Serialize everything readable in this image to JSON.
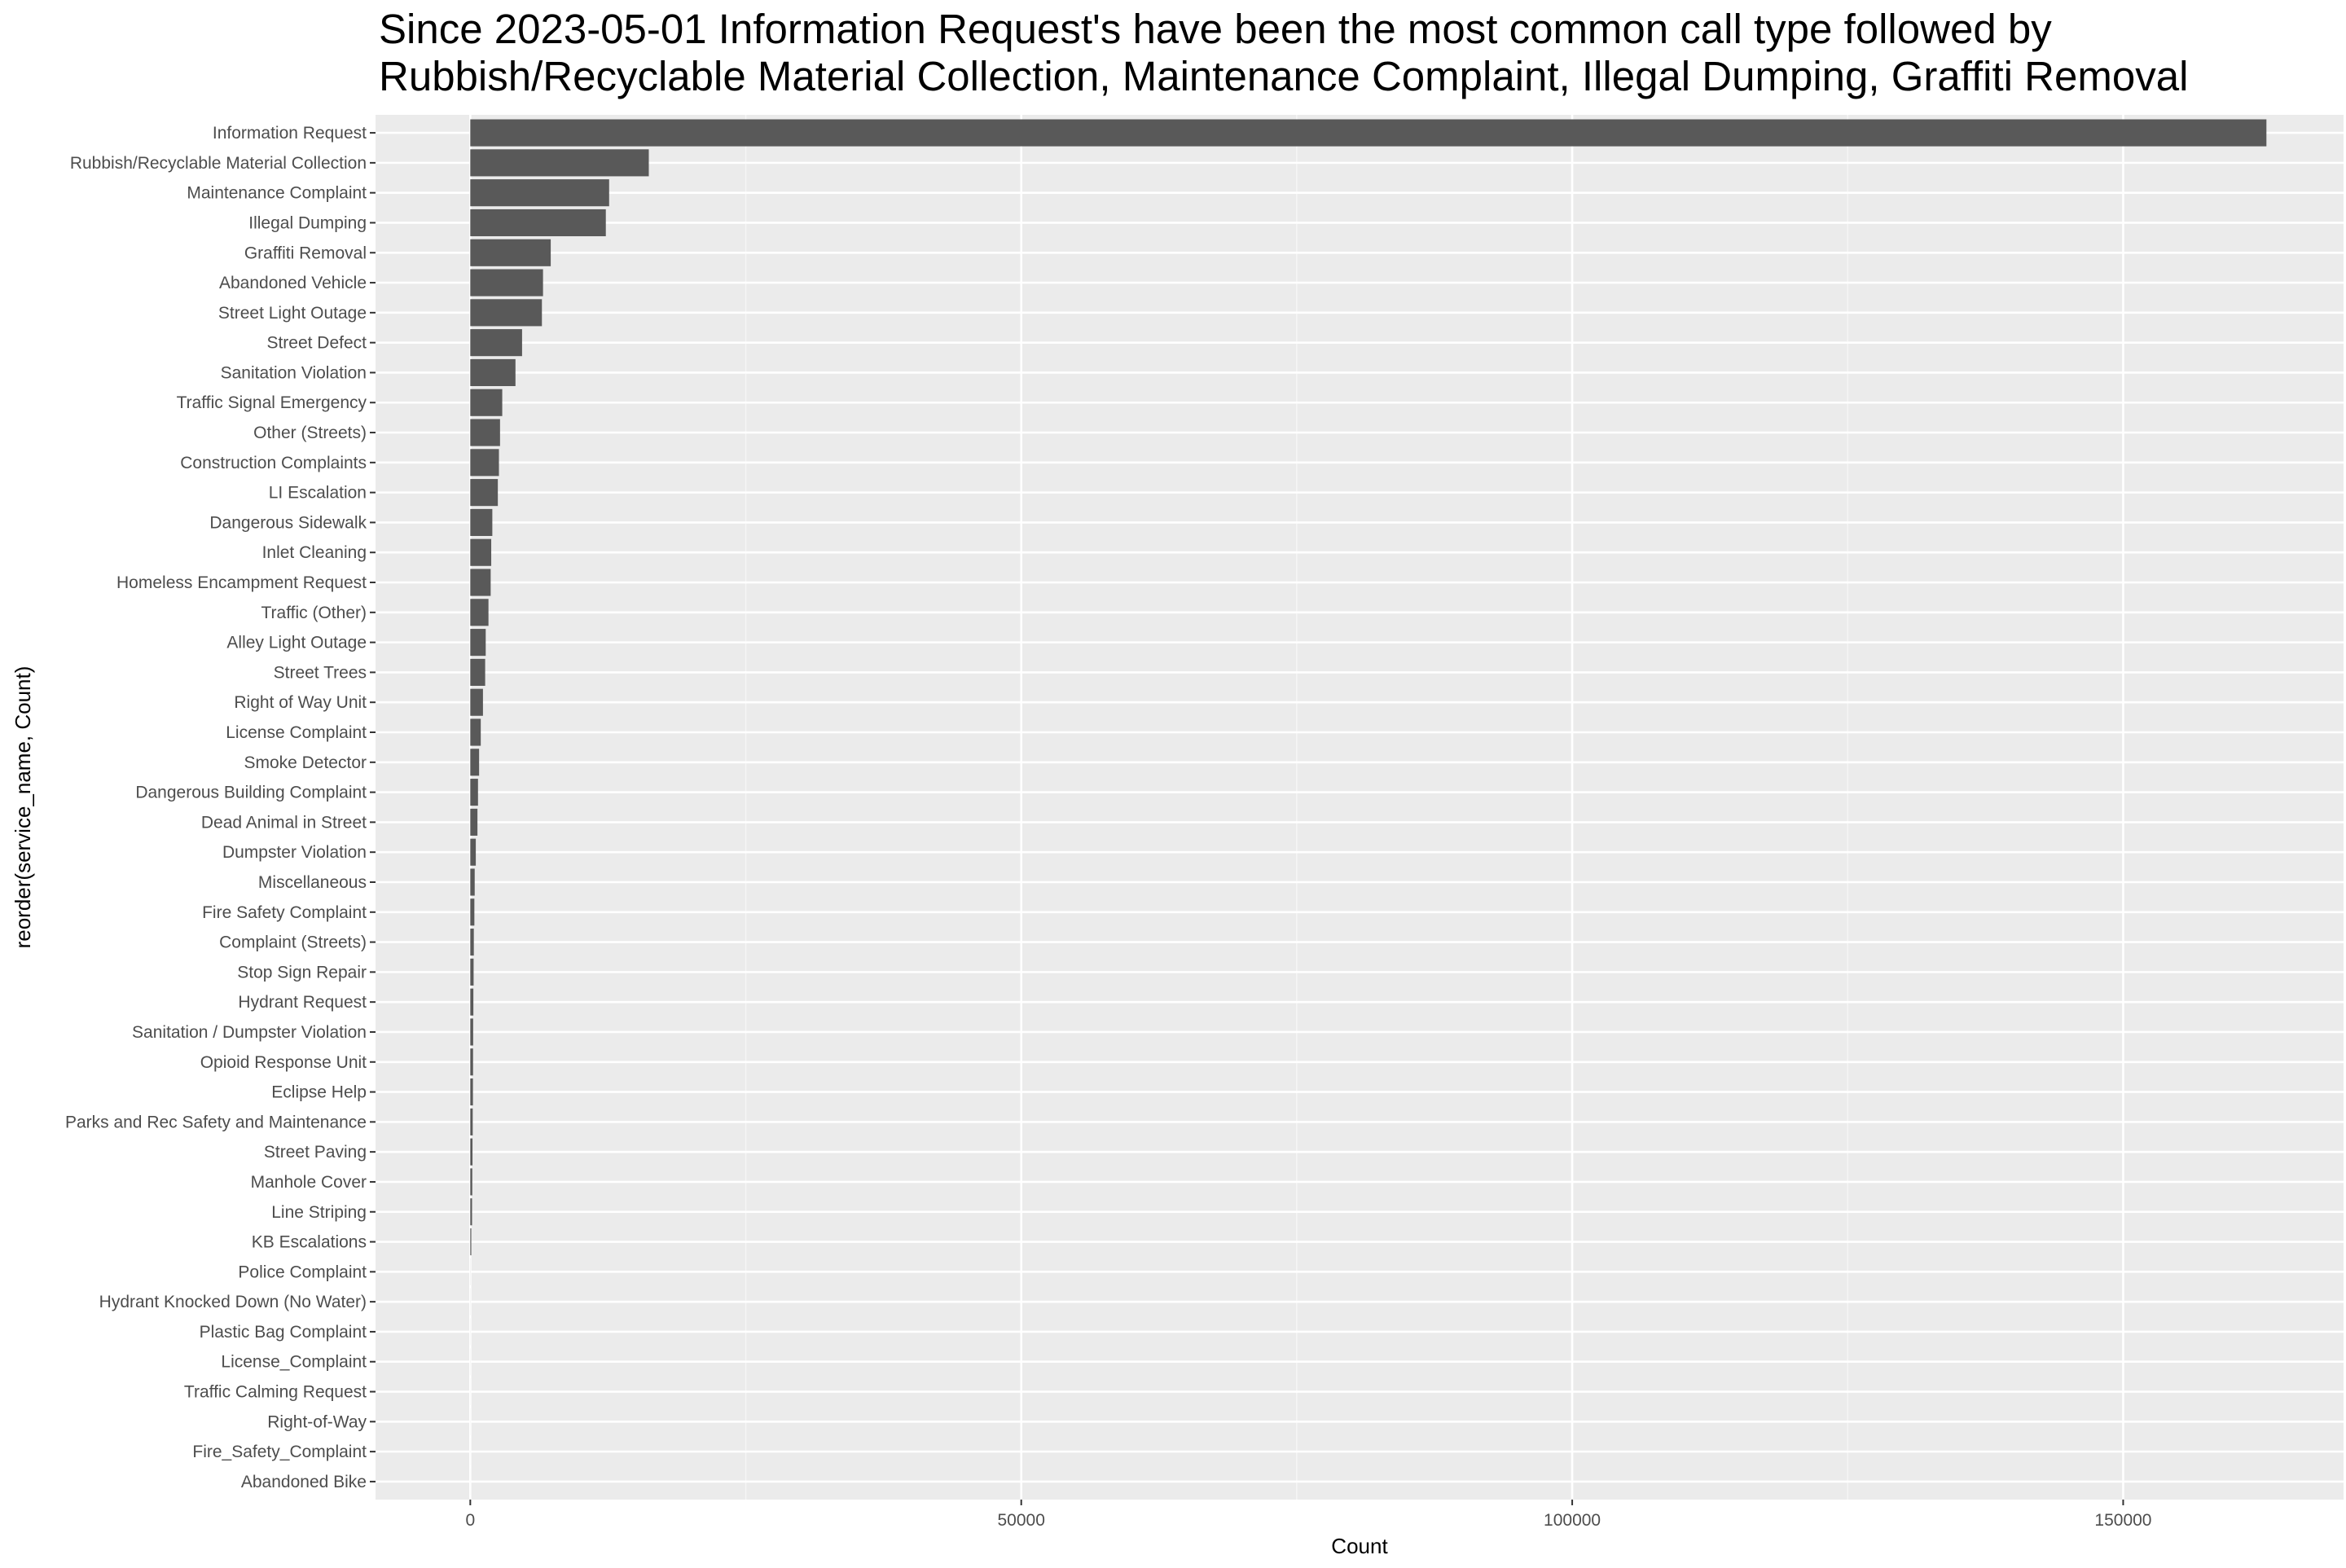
{
  "chart_data": {
    "type": "bar",
    "orientation": "horizontal",
    "title_lines": [
      "Since 2023-05-01 Information Request's have been the most common call type followed by",
      "Rubbish/Recyclable Material Collection, Maintenance Complaint, Illegal Dumping, Graffiti Removal"
    ],
    "xlabel": "Count",
    "ylabel": "reorder(service_name, Count)",
    "xlim": [
      -8600,
      170000
    ],
    "xticks": [
      0,
      50000,
      100000,
      150000
    ],
    "xtick_labels": [
      "0",
      "50000",
      "100000",
      "150000"
    ],
    "grid": true,
    "legend": "none",
    "colors": {
      "panel_background": "#ebebeb",
      "grid_major": "#ffffff",
      "bar_fill": "#595959",
      "tick": "#333333"
    },
    "categories": [
      "Information Request",
      "Rubbish/Recyclable Material Collection",
      "Maintenance Complaint",
      "Illegal Dumping",
      "Graffiti Removal",
      "Abandoned Vehicle",
      "Street Light Outage",
      "Street Defect",
      "Sanitation Violation",
      "Traffic Signal Emergency",
      "Other (Streets)",
      "Construction Complaints",
      "LI Escalation",
      "Dangerous Sidewalk",
      "Inlet Cleaning",
      "Homeless Encampment Request",
      "Traffic (Other)",
      "Alley Light Outage",
      "Street Trees",
      "Right of Way Unit",
      "License Complaint",
      "Smoke Detector",
      "Dangerous Building Complaint",
      "Dead Animal in Street",
      "Dumpster Violation",
      "Miscellaneous",
      "Fire Safety Complaint",
      "Complaint (Streets)",
      "Stop Sign Repair",
      "Hydrant Request",
      "Sanitation / Dumpster Violation",
      "Opioid Response Unit",
      "Eclipse Help",
      "Parks and Rec Safety and Maintenance",
      "Street Paving",
      "Manhole Cover",
      "Line Striping",
      "KB Escalations",
      "Police Complaint",
      "Hydrant Knocked Down (No Water)",
      "Plastic Bag Complaint",
      "License_Complaint",
      "Traffic Calming Request",
      "Right-of-Way",
      "Fire_Safety_Complaint",
      "Abandoned Bike"
    ],
    "values": [
      163000,
      16200,
      12600,
      12300,
      7300,
      6600,
      6500,
      4700,
      4100,
      2900,
      2700,
      2600,
      2500,
      2000,
      1900,
      1850,
      1650,
      1400,
      1350,
      1150,
      950,
      800,
      700,
      650,
      500,
      400,
      370,
      320,
      300,
      280,
      260,
      250,
      240,
      220,
      200,
      180,
      160,
      90,
      5,
      4,
      3,
      3,
      2,
      2,
      1,
      1
    ]
  }
}
